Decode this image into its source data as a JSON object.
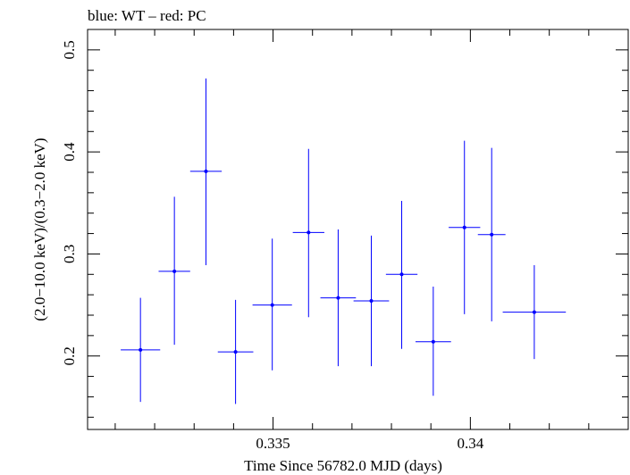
{
  "chart_data": {
    "type": "scatter",
    "title": "blue: WT – red: PC",
    "xlabel": "Time Since 56782.0 MJD (days)",
    "ylabel": "(2.0−10.0 keV)/(0.3−2.0 keV)",
    "xlim": [
      0.3303,
      0.344
    ],
    "ylim": [
      0.128,
      0.52
    ],
    "x_ticks": [
      {
        "value": 0.335,
        "label": "0.335"
      },
      {
        "value": 0.34,
        "label": "0.34"
      }
    ],
    "y_ticks": [
      {
        "value": 0.2,
        "label": "0.2"
      },
      {
        "value": 0.3,
        "label": "0.3"
      },
      {
        "value": 0.4,
        "label": "0.4"
      },
      {
        "value": 0.5,
        "label": "0.5"
      }
    ],
    "grid": false,
    "series": [
      {
        "name": "WT",
        "color": "#0000ff",
        "points": [
          {
            "x": 0.33164,
            "xerr": 0.0005,
            "y": 0.206,
            "ylo": 0.155,
            "yhi": 0.257
          },
          {
            "x": 0.3325,
            "xerr": 0.0004,
            "y": 0.283,
            "ylo": 0.211,
            "yhi": 0.356
          },
          {
            "x": 0.3333,
            "xerr": 0.0004,
            "y": 0.381,
            "ylo": 0.289,
            "yhi": 0.472
          },
          {
            "x": 0.33405,
            "xerr": 0.00045,
            "y": 0.204,
            "ylo": 0.153,
            "yhi": 0.255
          },
          {
            "x": 0.33498,
            "xerr": 0.0005,
            "y": 0.25,
            "ylo": 0.186,
            "yhi": 0.315
          },
          {
            "x": 0.3359,
            "xerr": 0.0004,
            "y": 0.321,
            "ylo": 0.238,
            "yhi": 0.403
          },
          {
            "x": 0.33665,
            "xerr": 0.00045,
            "y": 0.257,
            "ylo": 0.19,
            "yhi": 0.324
          },
          {
            "x": 0.33749,
            "xerr": 0.00045,
            "y": 0.254,
            "ylo": 0.19,
            "yhi": 0.318
          },
          {
            "x": 0.33826,
            "xerr": 0.0004,
            "y": 0.28,
            "ylo": 0.207,
            "yhi": 0.352
          },
          {
            "x": 0.33906,
            "xerr": 0.00045,
            "y": 0.214,
            "ylo": 0.161,
            "yhi": 0.268
          },
          {
            "x": 0.33985,
            "xerr": 0.0004,
            "y": 0.326,
            "ylo": 0.241,
            "yhi": 0.411
          },
          {
            "x": 0.34054,
            "xerr": 0.00035,
            "y": 0.319,
            "ylo": 0.234,
            "yhi": 0.404
          },
          {
            "x": 0.34162,
            "xerr": 0.0008,
            "y": 0.243,
            "ylo": 0.197,
            "yhi": 0.289
          }
        ]
      }
    ]
  }
}
